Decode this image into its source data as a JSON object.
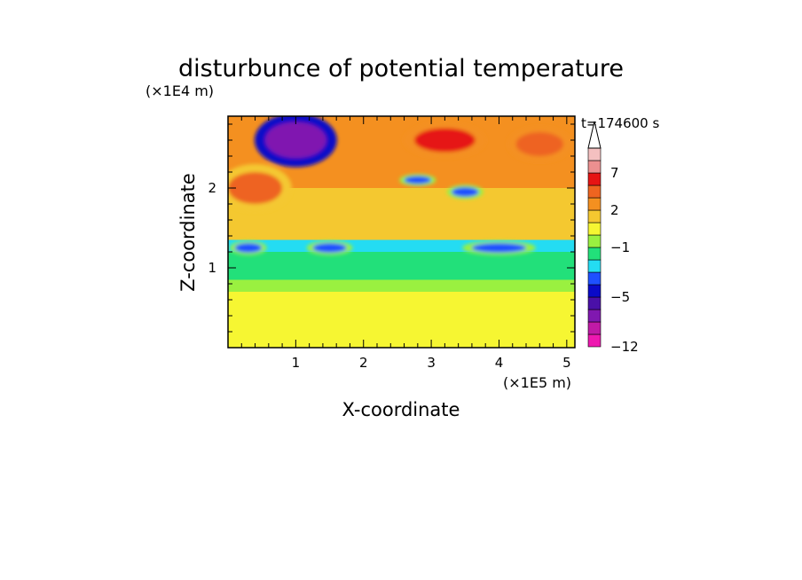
{
  "chart_data": {
    "type": "heatmap",
    "title": "disturbunce of potential temperature",
    "xlabel": "X-coordinate",
    "ylabel": "Z-coordinate",
    "x_unit": "(×1E5 m)",
    "y_unit": "(×1E4 m)",
    "time_label": "t=174600 s",
    "xlim": [
      0,
      5.12
    ],
    "ylim": [
      0,
      2.9
    ],
    "x_ticks": [
      1,
      2,
      3,
      4,
      5
    ],
    "y_ticks": [
      1,
      2
    ],
    "colorbar": {
      "levels": [
        -12,
        -10,
        -8,
        -6,
        -5,
        -4,
        -3,
        -2,
        -1,
        0,
        1,
        2,
        4,
        6,
        7,
        9,
        12
      ],
      "labels": [
        {
          "value": "-12",
          "text": "−12"
        },
        {
          "value": "-5",
          "text": "−5"
        },
        {
          "value": "-1",
          "text": "−1"
        },
        {
          "value": "2",
          "text": "2"
        },
        {
          "value": "7",
          "text": "7"
        }
      ],
      "colors": [
        "#ee18b0",
        "#c01aa6",
        "#8018b0",
        "#4a10a8",
        "#0a0ac8",
        "#1e50ff",
        "#24dcf2",
        "#22e07a",
        "#9af040",
        "#f6f632",
        "#f4c830",
        "#f49020",
        "#ee6420",
        "#e61414",
        "#ec9090",
        "#f4c0c0"
      ],
      "extend": "max"
    },
    "note_bands": [
      {
        "z": [
          0.0,
          0.7
        ],
        "value": 0.5
      },
      {
        "z": [
          0.7,
          0.85
        ],
        "value": -0.5
      },
      {
        "z": [
          0.85,
          1.05
        ],
        "value": -1.5
      },
      {
        "z": [
          1.05,
          1.2
        ],
        "value": -1.5
      },
      {
        "z": [
          1.2,
          1.35
        ],
        "value": -3
      },
      {
        "z": [
          1.35,
          2.0
        ],
        "value": 1
      },
      {
        "z": [
          2.0,
          2.9
        ],
        "value": 2
      }
    ],
    "features": [
      {
        "x": 1.0,
        "z": 2.6,
        "value": -8,
        "w": 0.9,
        "h": 0.45
      },
      {
        "x": 3.2,
        "z": 2.6,
        "value": 6,
        "w": 0.9,
        "h": 0.3
      },
      {
        "x": 4.6,
        "z": 2.55,
        "value": 5,
        "w": 0.7,
        "h": 0.3
      },
      {
        "x": 0.4,
        "z": 2.0,
        "value": 4,
        "w": 0.8,
        "h": 0.4
      },
      {
        "x": 2.8,
        "z": 2.1,
        "value": -4,
        "w": 0.4,
        "h": 0.1
      },
      {
        "x": 3.5,
        "z": 1.95,
        "value": -4,
        "w": 0.4,
        "h": 0.12
      },
      {
        "x": 0.3,
        "z": 1.25,
        "value": -4,
        "w": 0.4,
        "h": 0.12
      },
      {
        "x": 1.5,
        "z": 1.25,
        "value": -4,
        "w": 0.5,
        "h": 0.12
      },
      {
        "x": 4.0,
        "z": 1.25,
        "value": -4,
        "w": 0.8,
        "h": 0.12
      }
    ]
  }
}
